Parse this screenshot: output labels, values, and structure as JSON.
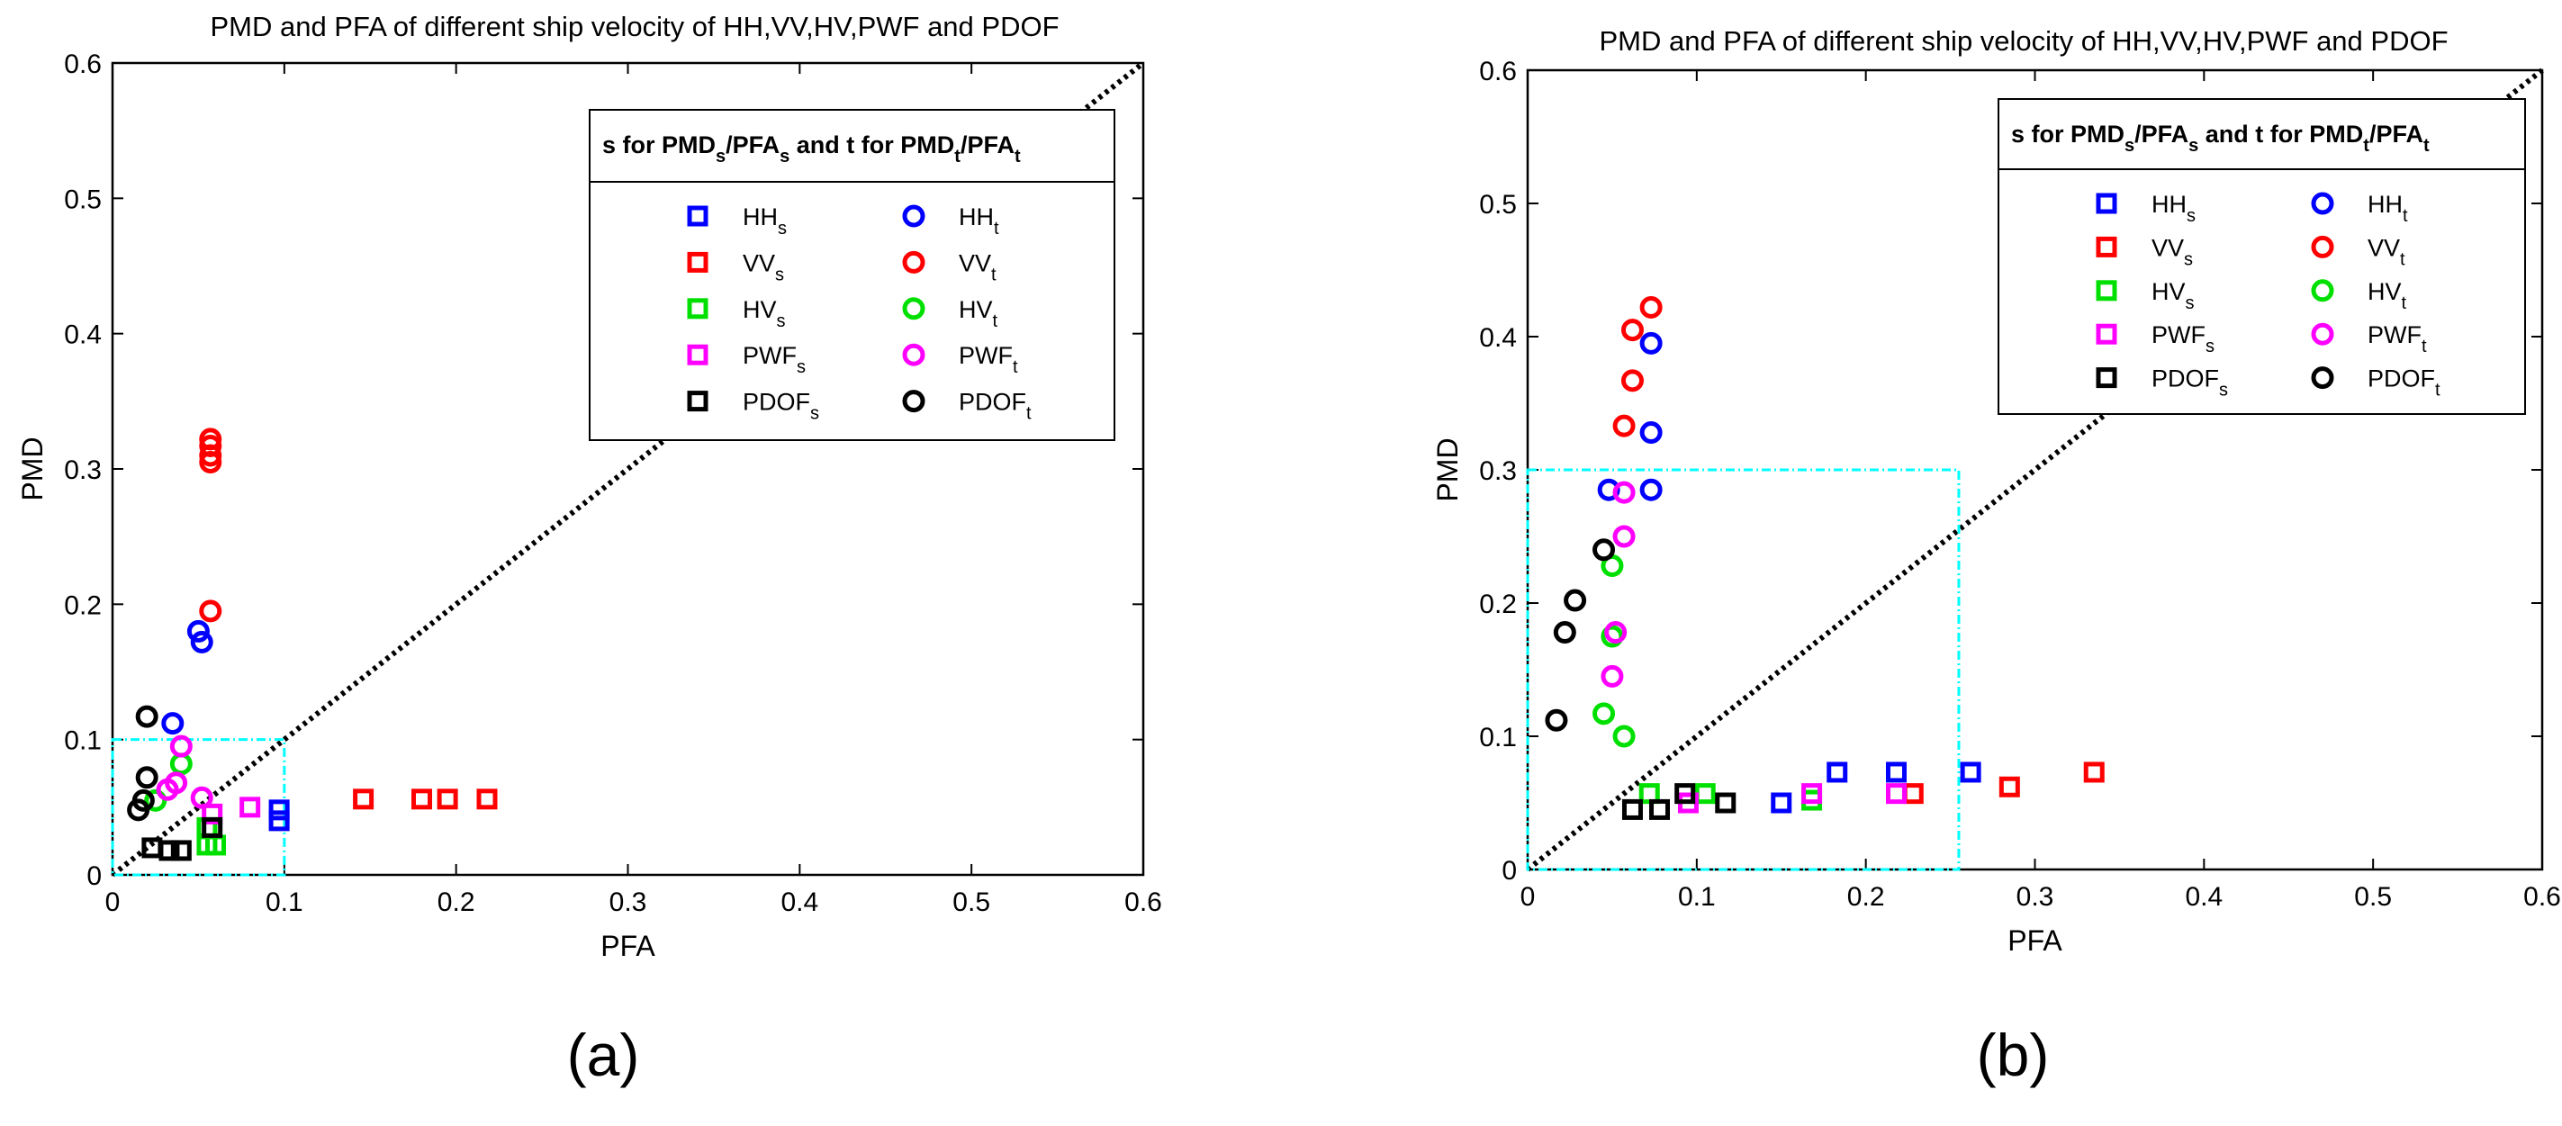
{
  "chart_data": [
    {
      "panel_label": "(a)",
      "type": "scatter",
      "title": "PMD and PFA of different ship velocity of HH,VV,HV,PWF and PDOF",
      "xlabel": "PFA",
      "ylabel": "PMD",
      "xlim": [
        0,
        0.6
      ],
      "ylim": [
        0,
        0.6
      ],
      "xticks": [
        "0",
        "0.1",
        "0.2",
        "0.3",
        "0.4",
        "0.5",
        "0.6"
      ],
      "yticks": [
        "0",
        "0.1",
        "0.2",
        "0.3",
        "0.4",
        "0.5",
        "0.6"
      ],
      "reference_line": {
        "from": [
          0,
          0
        ],
        "to": [
          0.6,
          0.6
        ],
        "style": "dotted"
      },
      "zoom_box": {
        "x": [
          0,
          0.1
        ],
        "y": [
          0,
          0.1
        ]
      },
      "legend": {
        "title_parts": [
          "s for PMD",
          "s",
          "/PFA",
          "s",
          " and t for PMD",
          "t",
          "/PFA",
          "t"
        ],
        "placement": "top-right"
      },
      "series": [
        {
          "name": "HH",
          "sub": "s",
          "marker": "square",
          "color": "#0000ff",
          "points": [
            [
              0.097,
              0.04
            ],
            [
              0.097,
              0.048
            ]
          ]
        },
        {
          "name": "VV",
          "sub": "s",
          "marker": "square",
          "color": "#ff0000",
          "points": [
            [
              0.146,
              0.056
            ],
            [
              0.18,
              0.056
            ],
            [
              0.195,
              0.056
            ],
            [
              0.218,
              0.056
            ]
          ]
        },
        {
          "name": "HV",
          "sub": "s",
          "marker": "square",
          "color": "#00e000",
          "points": [
            [
              0.055,
              0.022
            ],
            [
              0.06,
              0.022
            ],
            [
              0.055,
              0.035
            ]
          ]
        },
        {
          "name": "PWF",
          "sub": "s",
          "marker": "square",
          "color": "#ff00ff",
          "points": [
            [
              0.058,
              0.045
            ],
            [
              0.08,
              0.05
            ]
          ]
        },
        {
          "name": "PDOF",
          "sub": "s",
          "marker": "square",
          "color": "#000000",
          "points": [
            [
              0.023,
              0.02
            ],
            [
              0.033,
              0.018
            ],
            [
              0.04,
              0.018
            ],
            [
              0.058,
              0.035
            ]
          ]
        },
        {
          "name": "HH",
          "sub": "t",
          "marker": "circle",
          "color": "#0000ff",
          "points": [
            [
              0.035,
              0.112
            ],
            [
              0.05,
              0.18
            ],
            [
              0.052,
              0.172
            ]
          ]
        },
        {
          "name": "VV",
          "sub": "t",
          "marker": "circle",
          "color": "#ff0000",
          "points": [
            [
              0.057,
              0.195
            ],
            [
              0.057,
              0.305
            ],
            [
              0.057,
              0.31
            ],
            [
              0.057,
              0.317
            ],
            [
              0.057,
              0.322
            ]
          ]
        },
        {
          "name": "HV",
          "sub": "t",
          "marker": "circle",
          "color": "#00e000",
          "points": [
            [
              0.025,
              0.055
            ],
            [
              0.04,
              0.082
            ]
          ]
        },
        {
          "name": "PWF",
          "sub": "t",
          "marker": "circle",
          "color": "#ff00ff",
          "points": [
            [
              0.032,
              0.063
            ],
            [
              0.037,
              0.068
            ],
            [
              0.04,
              0.095
            ],
            [
              0.052,
              0.057
            ]
          ]
        },
        {
          "name": "PDOF",
          "sub": "t",
          "marker": "circle",
          "color": "#000000",
          "points": [
            [
              0.015,
              0.048
            ],
            [
              0.018,
              0.055
            ],
            [
              0.02,
              0.072
            ],
            [
              0.02,
              0.117
            ]
          ]
        }
      ]
    },
    {
      "panel_label": "(b)",
      "type": "scatter",
      "title": "PMD and PFA of different ship velocity of HH,VV,HV,PWF and PDOF",
      "xlabel": "PFA",
      "ylabel": "PMD",
      "xlim": [
        0,
        0.6
      ],
      "ylim": [
        0,
        0.6
      ],
      "xticks": [
        "0",
        "0.1",
        "0.2",
        "0.3",
        "0.4",
        "0.5",
        "0.6"
      ],
      "yticks": [
        "0",
        "0.1",
        "0.2",
        "0.3",
        "0.4",
        "0.5",
        "0.6"
      ],
      "reference_line": {
        "from": [
          0,
          0
        ],
        "to": [
          0.6,
          0.6
        ],
        "style": "dotted"
      },
      "zoom_box": {
        "x": [
          0,
          0.255
        ],
        "y": [
          0,
          0.3
        ]
      },
      "legend": {
        "title_parts": [
          "s for PMD",
          "s",
          "/PFA",
          "s",
          " and t for PMD",
          "t",
          "/PFA",
          "t"
        ],
        "placement": "top-right"
      },
      "series": [
        {
          "name": "HH",
          "sub": "s",
          "marker": "square",
          "color": "#0000ff",
          "points": [
            [
              0.15,
              0.05
            ],
            [
              0.183,
              0.073
            ],
            [
              0.218,
              0.073
            ],
            [
              0.262,
              0.073
            ]
          ]
        },
        {
          "name": "VV",
          "sub": "s",
          "marker": "square",
          "color": "#ff0000",
          "points": [
            [
              0.228,
              0.057
            ],
            [
              0.285,
              0.062
            ],
            [
              0.335,
              0.073
            ]
          ]
        },
        {
          "name": "HV",
          "sub": "s",
          "marker": "square",
          "color": "#00e000",
          "points": [
            [
              0.072,
              0.057
            ],
            [
              0.105,
              0.057
            ],
            [
              0.168,
              0.052
            ]
          ]
        },
        {
          "name": "PWF",
          "sub": "s",
          "marker": "square",
          "color": "#ff00ff",
          "points": [
            [
              0.095,
              0.05
            ],
            [
              0.168,
              0.057
            ],
            [
              0.218,
              0.057
            ]
          ]
        },
        {
          "name": "PDOF",
          "sub": "s",
          "marker": "square",
          "color": "#000000",
          "points": [
            [
              0.062,
              0.045
            ],
            [
              0.078,
              0.045
            ],
            [
              0.093,
              0.057
            ],
            [
              0.117,
              0.05
            ]
          ]
        },
        {
          "name": "HH",
          "sub": "t",
          "marker": "circle",
          "color": "#0000ff",
          "points": [
            [
              0.048,
              0.285
            ],
            [
              0.073,
              0.285
            ],
            [
              0.073,
              0.328
            ],
            [
              0.073,
              0.395
            ]
          ]
        },
        {
          "name": "VV",
          "sub": "t",
          "marker": "circle",
          "color": "#ff0000",
          "points": [
            [
              0.057,
              0.333
            ],
            [
              0.062,
              0.367
            ],
            [
              0.062,
              0.405
            ],
            [
              0.073,
              0.422
            ]
          ]
        },
        {
          "name": "HV",
          "sub": "t",
          "marker": "circle",
          "color": "#00e000",
          "points": [
            [
              0.045,
              0.117
            ],
            [
              0.05,
              0.175
            ],
            [
              0.05,
              0.228
            ],
            [
              0.057,
              0.1
            ]
          ]
        },
        {
          "name": "PWF",
          "sub": "t",
          "marker": "circle",
          "color": "#ff00ff",
          "points": [
            [
              0.05,
              0.145
            ],
            [
              0.052,
              0.178
            ],
            [
              0.057,
              0.25
            ],
            [
              0.057,
              0.283
            ]
          ]
        },
        {
          "name": "PDOF",
          "sub": "t",
          "marker": "circle",
          "color": "#000000",
          "points": [
            [
              0.017,
              0.112
            ],
            [
              0.022,
              0.178
            ],
            [
              0.028,
              0.202
            ],
            [
              0.045,
              0.24
            ]
          ]
        }
      ]
    }
  ]
}
